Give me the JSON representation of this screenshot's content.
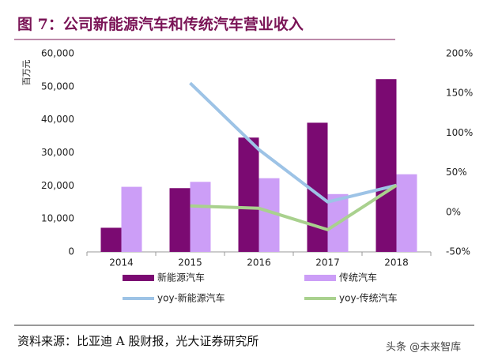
{
  "chart_data": {
    "type": "bar",
    "title": "图 7：公司新能源汽车和传统汽车营业收入",
    "y_label": "百万元",
    "source": "资料来源：比亚迪 A 股财报，光大证券研究所",
    "watermark": "头条 @未来智库",
    "categories": [
      "2014",
      "2015",
      "2016",
      "2017",
      "2018"
    ],
    "series": [
      {
        "name": "新能源汽车",
        "color": "#7b0a72",
        "type": "bar",
        "values": [
          7300,
          19300,
          34600,
          39100,
          52300
        ]
      },
      {
        "name": "传统汽车",
        "color": "#cc9ef7",
        "type": "bar",
        "values": [
          19700,
          21200,
          22300,
          17500,
          23500
        ]
      },
      {
        "name": "yoy-新能源汽车",
        "color": "#9dc3e6",
        "type": "line",
        "axis": "y2",
        "values": [
          null,
          163,
          79,
          13,
          34
        ]
      },
      {
        "name": "yoy-传统汽车",
        "color": "#a9d18e",
        "type": "line",
        "axis": "y2",
        "values": [
          null,
          8,
          5,
          -22,
          34
        ]
      }
    ],
    "ylim": [
      0,
      60000
    ],
    "yticks": [
      0,
      {
        "value": 10000,
        "label": "10,000"
      },
      {
        "value": 20000,
        "label": "20,000"
      },
      {
        "value": 30000,
        "label": "30,000"
      },
      {
        "value": 40000,
        "label": "40,000"
      },
      {
        "value": 50000,
        "label": "50,000"
      },
      {
        "value": 60000,
        "label": "60,000"
      }
    ],
    "y2lim": [
      -50,
      200
    ],
    "y2ticks": [
      {
        "value": -50,
        "label": "-50%"
      },
      {
        "value": 0,
        "label": "0%"
      },
      {
        "value": 50,
        "label": "50%"
      },
      {
        "value": 100,
        "label": "100%"
      },
      {
        "value": 150,
        "label": "150%"
      },
      {
        "value": 200,
        "label": "200%"
      }
    ],
    "grid": false,
    "legend": "bottom"
  }
}
